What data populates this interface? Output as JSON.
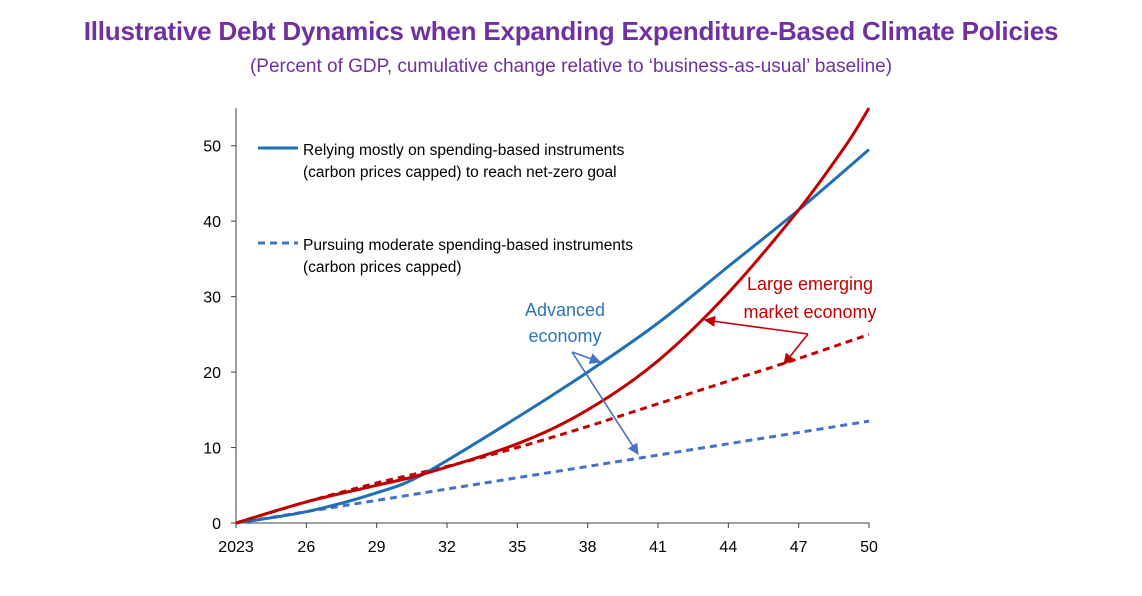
{
  "title": "Illustrative Debt Dynamics when Expanding Expenditure-Based Climate Policies",
  "subtitle": "(Percent of GDP, cumulative change relative to ‘business-as-usual’ baseline)",
  "colors": {
    "title": "#7030a0",
    "advanced_solid": "#1f6fb5",
    "advanced_dashed": "#4472c4",
    "emerging": "#c00000",
    "axis": "#404040"
  },
  "chart_data": {
    "type": "line",
    "x_tick_labels": [
      "2023",
      "26",
      "29",
      "32",
      "35",
      "38",
      "41",
      "44",
      "47",
      "50"
    ],
    "x_ticks": [
      2023,
      2026,
      2029,
      2032,
      2035,
      2038,
      2041,
      2044,
      2047,
      2050
    ],
    "xlim": [
      2023,
      2050
    ],
    "ylim": [
      0,
      55
    ],
    "y_ticks": [
      0,
      10,
      20,
      30,
      40,
      50
    ],
    "grid": false,
    "legend_position": "top-left",
    "legend": [
      {
        "style": "solid",
        "line1": "Relying mostly on spending-based instruments",
        "line2": "(carbon prices capped) to reach net-zero goal"
      },
      {
        "style": "dashed",
        "line1": "Pursuing moderate spending-based instruments",
        "line2": "(carbon prices capped)"
      }
    ],
    "annotations": {
      "advanced": [
        "Advanced",
        "economy"
      ],
      "emerging": [
        "Large emerging",
        "market economy"
      ]
    },
    "series": [
      {
        "style": "solid",
        "color_key": "advanced_solid",
        "x": [
          2023,
          2026,
          2029,
          2031,
          2035,
          2038,
          2041,
          2044,
          2047,
          2050
        ],
        "y": [
          0,
          1.5,
          4,
          6.5,
          14,
          20,
          26.5,
          34,
          41.5,
          49.5
        ]
      },
      {
        "style": "solid",
        "color_key": "emerging",
        "x": [
          2023,
          2026,
          2029,
          2031,
          2035,
          2038,
          2041,
          2044,
          2047,
          2049,
          2050
        ],
        "y": [
          0,
          2.8,
          5,
          6.5,
          10.5,
          15,
          21.5,
          30.5,
          41.5,
          50,
          55
        ]
      },
      {
        "style": "dashed",
        "color_key": "advanced_dashed",
        "x": [
          2023,
          2026,
          2029,
          2032,
          2035,
          2038,
          2041,
          2044,
          2047,
          2050
        ],
        "y": [
          0,
          1.5,
          3,
          4.5,
          6,
          7.5,
          9,
          10.5,
          12,
          13.5
        ]
      },
      {
        "style": "dashed",
        "color_key": "emerging",
        "x": [
          2023,
          2026,
          2029,
          2032,
          2035,
          2038,
          2041,
          2044,
          2047,
          2050
        ],
        "y": [
          0,
          2.8,
          5.3,
          7.5,
          10,
          12.8,
          15.8,
          18.8,
          21.8,
          25
        ]
      }
    ]
  }
}
